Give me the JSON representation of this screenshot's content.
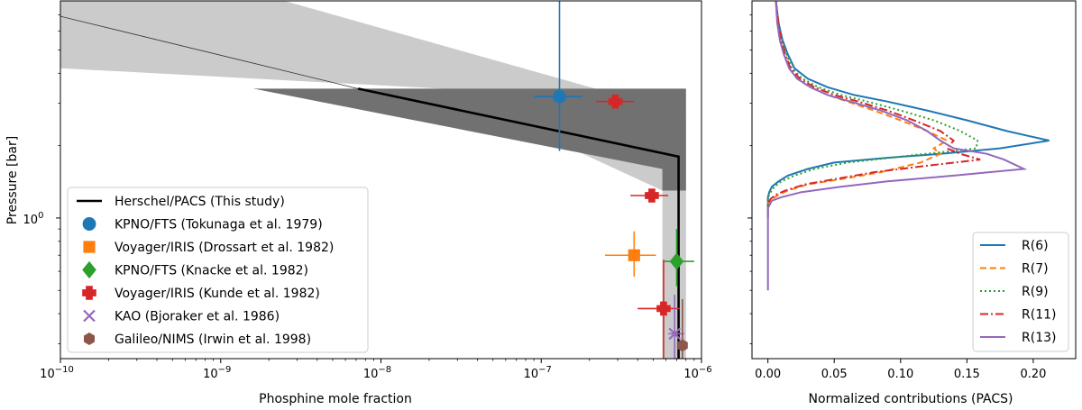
{
  "chart_data": [
    {
      "type": "scatter",
      "panel": "left",
      "xlabel": "Phosphine mole fraction",
      "ylabel": "Pressure [bar]",
      "xscale": "log",
      "yscale": "log",
      "xlim": [
        1e-10,
        1e-06
      ],
      "ylim": [
        0.26,
        8.0
      ],
      "x_ticks": [
        {
          "value": 1e-10,
          "base": "10",
          "exp": "−10"
        },
        {
          "value": 1e-09,
          "base": "10",
          "exp": "−9"
        },
        {
          "value": 1e-08,
          "base": "10",
          "exp": "−8"
        },
        {
          "value": 1e-07,
          "base": "10",
          "exp": "−7"
        },
        {
          "value": 1e-06,
          "base": "10",
          "exp": "−6"
        }
      ],
      "y_ticks": [
        {
          "value": 1.0,
          "base": "10",
          "exp": "0"
        }
      ],
      "model": {
        "name": "Herschel/PACS (This study)",
        "line": [
          [
            7.2e-09,
            3.45
          ],
          [
            7.2e-07,
            1.8
          ],
          [
            7.2e-07,
            0.26
          ]
        ],
        "thin_line": [
          [
            1e-10,
            6.9
          ],
          [
            7.2e-09,
            3.45
          ]
        ],
        "dark_band": [
          [
            1.6e-09,
            3.45
          ],
          [
            8e-07,
            3.45
          ],
          [
            8e-07,
            1.3
          ],
          [
            5.7e-07,
            1.3
          ],
          [
            5.7e-07,
            1.6
          ],
          [
            1.6e-09,
            3.45
          ]
        ],
        "light_band": [
          [
            1e-10,
            8.0
          ],
          [
            2.5e-09,
            8.0
          ],
          [
            8e-07,
            2.7
          ],
          [
            8e-07,
            0.26
          ],
          [
            5.7e-07,
            0.26
          ],
          [
            5.7e-07,
            1.3
          ],
          [
            2.4e-08,
            3.45
          ],
          [
            1e-10,
            4.2
          ]
        ]
      },
      "series": [
        {
          "name": "KPNO/FTS (Tokunaga et al. 1979)",
          "color": "#1f77b4",
          "marker": "circle",
          "points": [
            {
              "x": 1.3e-07,
              "y": 3.2,
              "xerr": [
                9e-08,
                1.8e-07
              ],
              "yerr": [
                1.9,
                8.0
              ]
            }
          ]
        },
        {
          "name": "Voyager/IRIS (Drossart et al. 1982)",
          "color": "#ff7f0e",
          "marker": "square",
          "points": [
            {
              "x": 3.8e-07,
              "y": 0.7,
              "xerr": [
                2.5e-07,
                5.2e-07
              ],
              "yerr": [
                0.57,
                0.88
              ]
            }
          ]
        },
        {
          "name": "KPNO/FTS (Knacke et al. 1982)",
          "color": "#2ca02c",
          "marker": "diamond",
          "points": [
            {
              "x": 7e-07,
              "y": 0.66,
              "xerr": [
                5.8e-07,
                9e-07
              ],
              "yerr": [
                0.52,
                0.9
              ]
            }
          ]
        },
        {
          "name": "Voyager/IRIS (Kunde et al. 1982)",
          "color": "#d62728",
          "marker": "plus",
          "points": [
            {
              "x": 2.9e-07,
              "y": 3.05,
              "xerr": [
                2.2e-07,
                3.8e-07
              ],
              "yerr": [
                2.95,
                3.15
              ]
            },
            {
              "x": 4.9e-07,
              "y": 1.24,
              "xerr": [
                3.6e-07,
                6.2e-07
              ],
              "yerr": [
                1.19,
                1.29
              ]
            },
            {
              "x": 5.8e-07,
              "y": 0.42,
              "xerr": [
                4e-07,
                7.3e-07
              ],
              "yerr": [
                0.26,
                0.67
              ]
            }
          ]
        },
        {
          "name": "KAO (Bjoraker et al. 1986)",
          "color": "#9467bd",
          "marker": "x",
          "points": [
            {
              "x": 6.8e-07,
              "y": 0.33,
              "xerr": [
                6.2e-07,
                7.8e-07
              ],
              "yerr": [
                0.26,
                0.48
              ]
            }
          ]
        },
        {
          "name": "Galileo/NIMS (Irwin et al. 1998)",
          "color": "#8c564b",
          "marker": "hexagon",
          "points": [
            {
              "x": 7.6e-07,
              "y": 0.295,
              "xerr": [
                7.6e-07,
                7.6e-07
              ],
              "yerr": [
                0.26,
                0.46
              ]
            }
          ]
        }
      ],
      "legend_position": "lower-left"
    },
    {
      "type": "line",
      "panel": "right",
      "xlabel": "Normalized contributions (PACS)",
      "xlim": [
        -0.012,
        0.232
      ],
      "ylim": [
        0.26,
        8.0
      ],
      "x_ticks": [
        {
          "value": 0.0,
          "label": "0.00"
        },
        {
          "value": 0.05,
          "label": "0.05"
        },
        {
          "value": 0.1,
          "label": "0.10"
        },
        {
          "value": 0.15,
          "label": "0.15"
        },
        {
          "value": 0.2,
          "label": "0.20"
        }
      ],
      "legend_position": "lower-right",
      "series": [
        {
          "name": "R(6)",
          "color": "#1f77b4",
          "dash": "",
          "pressure": [
            8.0,
            6.5,
            5.5,
            4.8,
            4.2,
            3.8,
            3.5,
            3.25,
            3.05,
            2.8,
            2.55,
            2.3,
            2.1,
            1.95,
            1.85,
            1.78,
            1.7,
            1.6,
            1.5,
            1.42,
            1.35,
            1.28,
            1.22,
            1.18,
            1.1,
            1.0
          ],
          "values": [
            0.006,
            0.008,
            0.011,
            0.015,
            0.02,
            0.03,
            0.045,
            0.065,
            0.09,
            0.12,
            0.15,
            0.18,
            0.212,
            0.175,
            0.13,
            0.09,
            0.05,
            0.03,
            0.015,
            0.008,
            0.003,
            0.001,
            0.0,
            0.0,
            0.0,
            0.0
          ]
        },
        {
          "name": "R(7)",
          "color": "#ff7f0e",
          "dash": "7,4",
          "pressure": [
            8.0,
            6.5,
            5.5,
            4.8,
            4.2,
            3.8,
            3.5,
            3.25,
            3.05,
            2.8,
            2.55,
            2.3,
            2.1,
            1.95,
            1.85,
            1.7,
            1.55,
            1.45,
            1.38,
            1.3,
            1.25,
            1.2,
            1.15,
            1.1,
            1.0
          ],
          "values": [
            0.006,
            0.007,
            0.009,
            0.012,
            0.016,
            0.022,
            0.032,
            0.045,
            0.06,
            0.08,
            0.1,
            0.12,
            0.135,
            0.125,
            0.13,
            0.115,
            0.085,
            0.055,
            0.03,
            0.015,
            0.008,
            0.003,
            0.0,
            0.0,
            0.0
          ]
        },
        {
          "name": "R(9)",
          "color": "#2ca02c",
          "dash": "2,3",
          "pressure": [
            8.0,
            6.5,
            5.5,
            4.8,
            4.2,
            3.8,
            3.5,
            3.25,
            3.05,
            2.8,
            2.55,
            2.3,
            2.1,
            1.95,
            1.8,
            1.7,
            1.6,
            1.5,
            1.42,
            1.35,
            1.28,
            1.22,
            1.18,
            1.1
          ],
          "values": [
            0.006,
            0.008,
            0.01,
            0.014,
            0.018,
            0.026,
            0.038,
            0.055,
            0.075,
            0.1,
            0.125,
            0.145,
            0.158,
            0.157,
            0.1,
            0.06,
            0.035,
            0.02,
            0.01,
            0.005,
            0.002,
            0.0,
            0.0,
            0.0
          ]
        },
        {
          "name": "R(11)",
          "color": "#d62728",
          "dash": "9,3,2,3",
          "pressure": [
            8.0,
            6.5,
            5.5,
            4.8,
            4.2,
            3.8,
            3.5,
            3.25,
            3.05,
            2.8,
            2.55,
            2.3,
            2.1,
            1.95,
            1.85,
            1.75,
            1.65,
            1.55,
            1.45,
            1.38,
            1.3,
            1.25,
            1.2,
            1.15,
            1.1
          ],
          "values": [
            0.006,
            0.008,
            0.01,
            0.013,
            0.017,
            0.024,
            0.035,
            0.05,
            0.068,
            0.09,
            0.11,
            0.13,
            0.14,
            0.135,
            0.145,
            0.16,
            0.12,
            0.08,
            0.05,
            0.028,
            0.013,
            0.006,
            0.002,
            0.0,
            0.0
          ]
        },
        {
          "name": "R(13)",
          "color": "#9467bd",
          "dash": "",
          "pressure": [
            8.0,
            6.5,
            5.5,
            4.8,
            4.2,
            3.8,
            3.5,
            3.25,
            3.05,
            2.8,
            2.55,
            2.3,
            2.1,
            1.95,
            1.85,
            1.75,
            1.6,
            1.5,
            1.42,
            1.35,
            1.28,
            1.22,
            1.18,
            1.1,
            1.0,
            0.8,
            0.6,
            0.5
          ],
          "values": [
            0.006,
            0.007,
            0.009,
            0.012,
            0.016,
            0.022,
            0.032,
            0.045,
            0.062,
            0.085,
            0.105,
            0.12,
            0.13,
            0.14,
            0.165,
            0.178,
            0.193,
            0.14,
            0.09,
            0.055,
            0.025,
            0.01,
            0.003,
            0.0,
            0.0,
            0.0,
            0.0,
            0.0
          ]
        }
      ]
    }
  ]
}
